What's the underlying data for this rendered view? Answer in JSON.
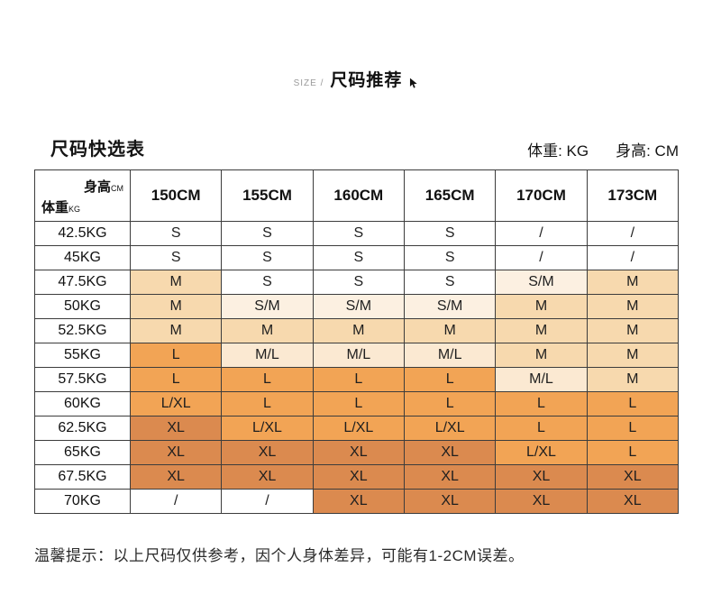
{
  "page": {
    "eyebrow": "SIZE /",
    "title": "尺码推荐",
    "table_title": "尺码快选表",
    "unit_weight": "体重: KG",
    "unit_height": "身高: CM",
    "note": "温馨提示：以上尺码仅供参考，因个人身体差异，可能有1-2CM误差。"
  },
  "chart_data": {
    "type": "table",
    "title": "尺码快选表",
    "corner": {
      "top_label": "身高",
      "top_unit": "CM",
      "bottom_label": "体重",
      "bottom_unit": "KG"
    },
    "columns": [
      "150CM",
      "155CM",
      "160CM",
      "165CM",
      "170CM",
      "173CM"
    ],
    "rows": [
      {
        "weight": "42.5KG",
        "cells": [
          "S",
          "S",
          "S",
          "S",
          "/",
          "/"
        ]
      },
      {
        "weight": "45KG",
        "cells": [
          "S",
          "S",
          "S",
          "S",
          "/",
          "/"
        ]
      },
      {
        "weight": "47.5KG",
        "cells": [
          "M",
          "S",
          "S",
          "S",
          "S/M",
          "M"
        ]
      },
      {
        "weight": "50KG",
        "cells": [
          "M",
          "S/M",
          "S/M",
          "S/M",
          "M",
          "M"
        ]
      },
      {
        "weight": "52.5KG",
        "cells": [
          "M",
          "M",
          "M",
          "M",
          "M",
          "M"
        ]
      },
      {
        "weight": "55KG",
        "cells": [
          "L",
          "M/L",
          "M/L",
          "M/L",
          "M",
          "M"
        ]
      },
      {
        "weight": "57.5KG",
        "cells": [
          "L",
          "L",
          "L",
          "L",
          "M/L",
          "M"
        ]
      },
      {
        "weight": "60KG",
        "cells": [
          "L/XL",
          "L",
          "L",
          "L",
          "L",
          "L"
        ]
      },
      {
        "weight": "62.5KG",
        "cells": [
          "XL",
          "L/XL",
          "L/XL",
          "L/XL",
          "L",
          "L"
        ]
      },
      {
        "weight": "65KG",
        "cells": [
          "XL",
          "XL",
          "XL",
          "XL",
          "L/XL",
          "L"
        ]
      },
      {
        "weight": "67.5KG",
        "cells": [
          "XL",
          "XL",
          "XL",
          "XL",
          "XL",
          "XL"
        ]
      },
      {
        "weight": "70KG",
        "cells": [
          "/",
          "/",
          "XL",
          "XL",
          "XL",
          "XL"
        ]
      }
    ],
    "cell_colors_by_value": {
      "S": "#ffffff",
      "/": "#ffffff",
      "S/M": "#fcf0e1",
      "M": "#f7d9ae",
      "M/L": "#fbe9d2",
      "L": "#f2a455",
      "L/XL": "#f2a455",
      "XL": "#db8a4f"
    },
    "border_color": "#3c3c3c"
  }
}
